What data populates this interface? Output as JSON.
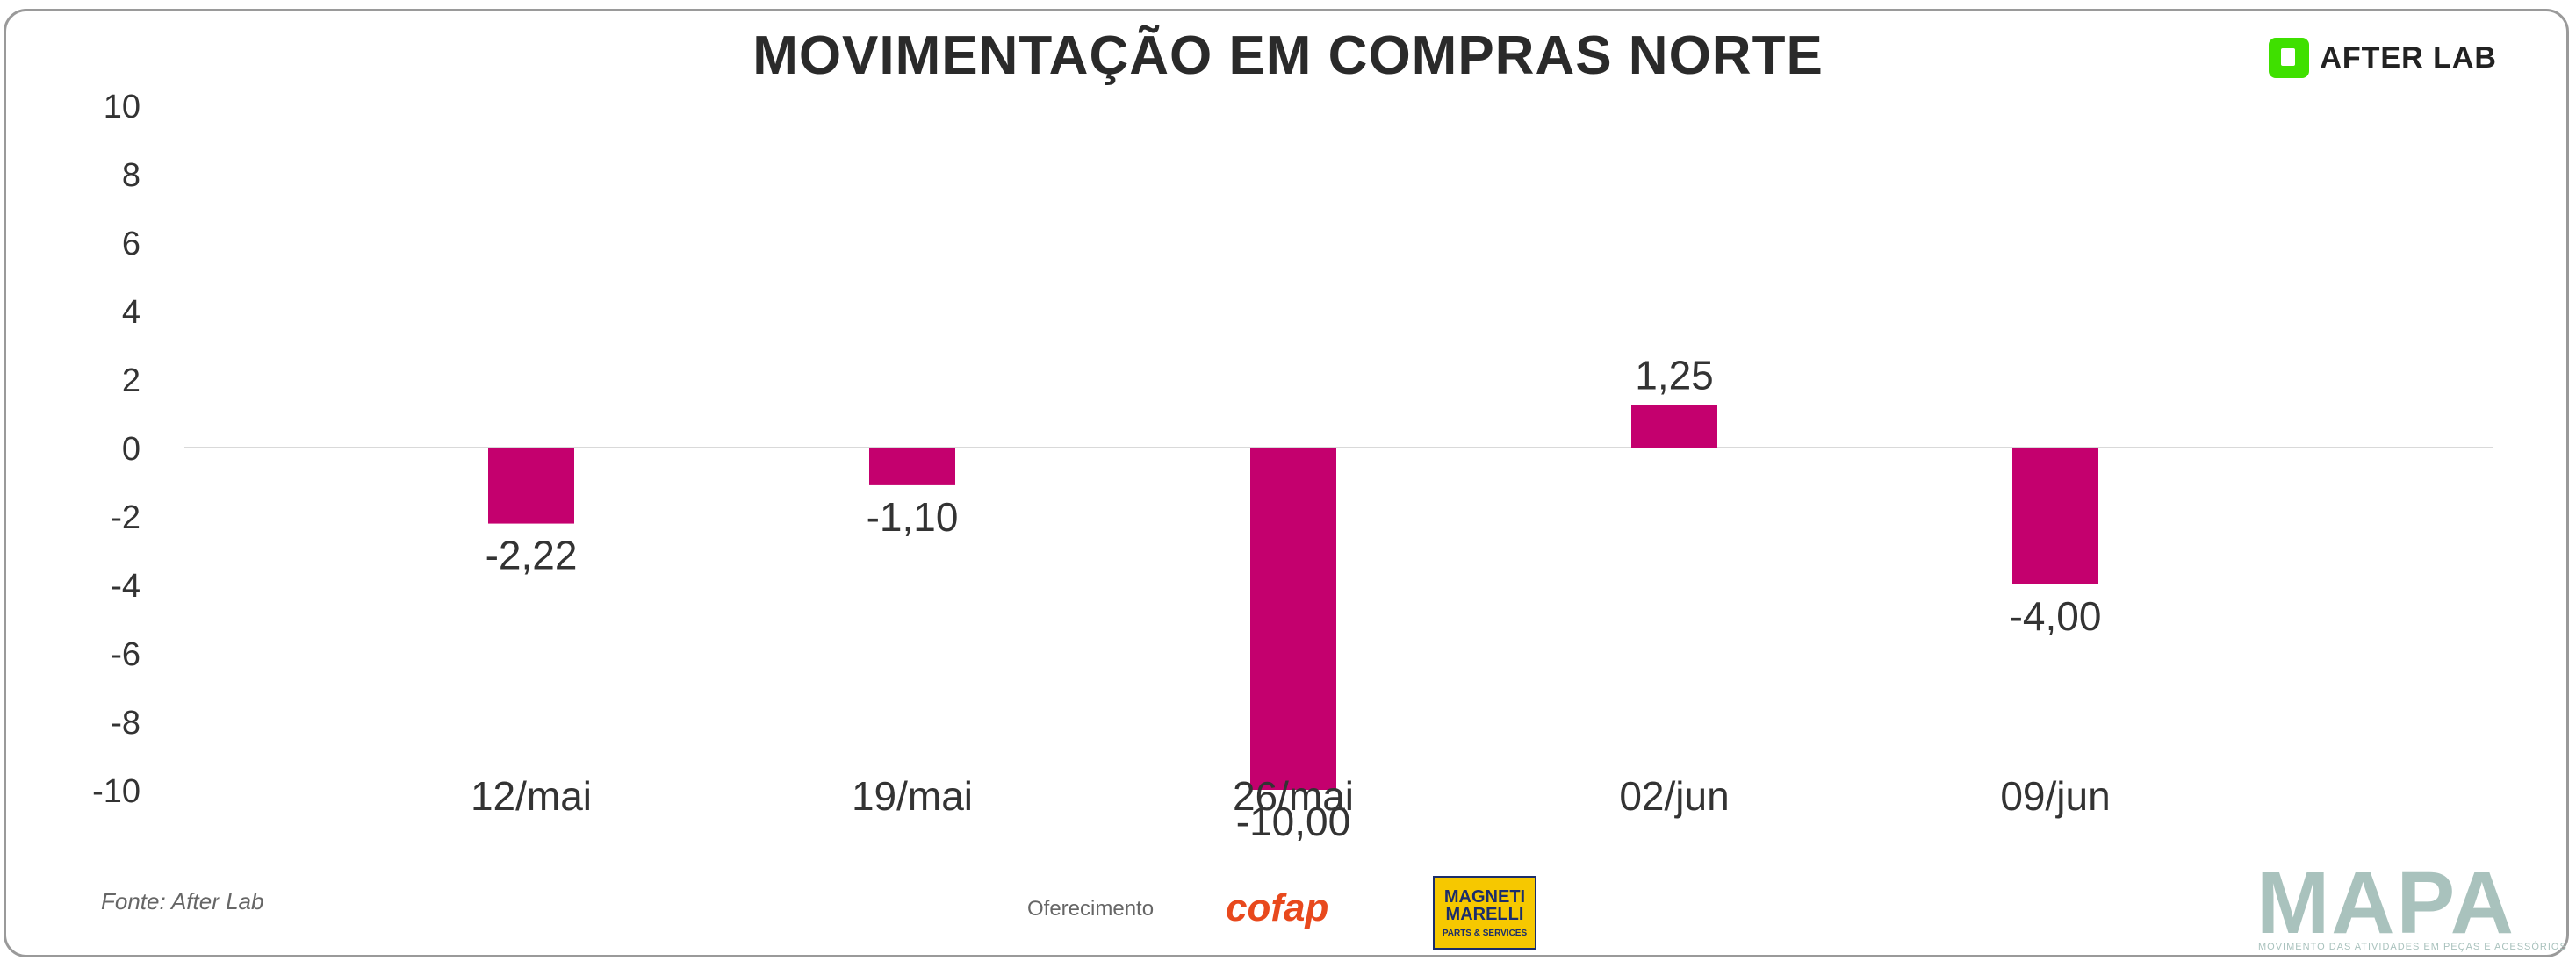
{
  "header": {
    "brand_logo": "AFTER LAB"
  },
  "chart_data": {
    "type": "bar",
    "title": "MOVIMENTAÇÃO EM COMPRAS NORTE",
    "categories": [
      "12/mai",
      "19/mai",
      "26/mai",
      "02/jun",
      "09/jun"
    ],
    "values": [
      -2.22,
      -1.1,
      -10.0,
      1.25,
      -4.0
    ],
    "data_labels": [
      "-2,22",
      "-1,10",
      "-10,00",
      "1,25",
      "-4,00"
    ],
    "yticks": [
      10,
      8,
      6,
      4,
      2,
      0,
      -2,
      -4,
      -6,
      -8,
      -10
    ],
    "ylim": [
      -10,
      10
    ],
    "xlabel": "",
    "ylabel": "",
    "grid": false,
    "bar_color": "#c4006e"
  },
  "footer": {
    "source": "Fonte: After Lab",
    "sponsor_label": "Oferecimento",
    "sponsor_1": "cofap",
    "sponsor_2_line1": "MAGNETI MARELLI",
    "sponsor_2_line2": "PARTS & SERVICES",
    "watermark": "MAPA",
    "watermark_sub": "MOVIMENTO DAS ATIVIDADES EM PEÇAS E ACESSÓRIOS"
  }
}
